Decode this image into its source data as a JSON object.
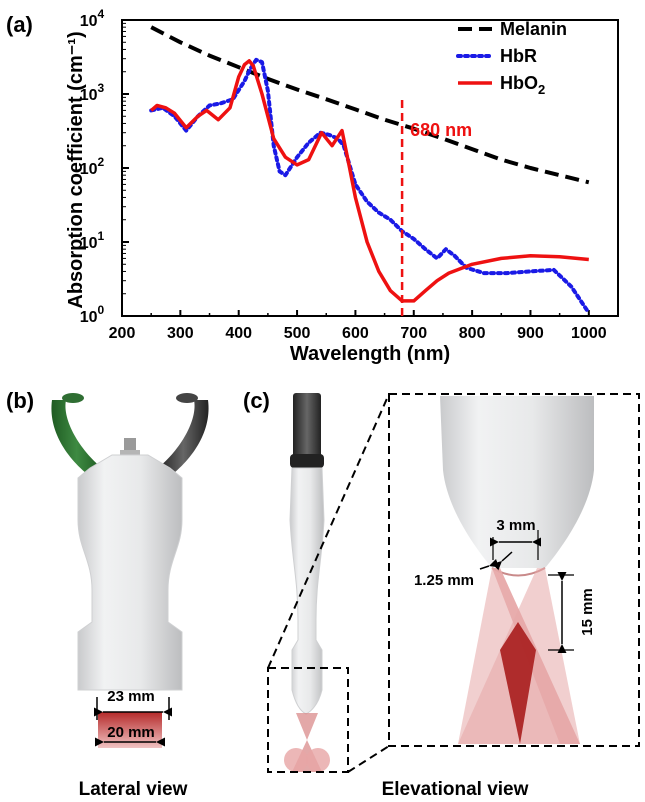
{
  "panels": {
    "a": "(a)",
    "b": "(b)",
    "c": "(c)"
  },
  "chart_data": {
    "type": "line",
    "xlabel": "Wavelength (nm)",
    "ylabel": "Absorption coefficient (cm⁻¹)",
    "xlim": [
      200,
      1050
    ],
    "ylim": [
      1,
      10000
    ],
    "yscale": "log",
    "xticks": [
      200,
      300,
      400,
      500,
      600,
      700,
      800,
      900,
      1000
    ],
    "yticks": [
      {
        "value": 1,
        "base": "10",
        "exp": "0"
      },
      {
        "value": 10,
        "base": "10",
        "exp": "1"
      },
      {
        "value": 100,
        "base": "10",
        "exp": "2"
      },
      {
        "value": 1000,
        "base": "10",
        "exp": "3"
      },
      {
        "value": 10000,
        "base": "10",
        "exp": "4"
      }
    ],
    "legend_position": "top-right",
    "series": [
      {
        "name": "Melanin",
        "color": "#000000",
        "dash": "dashed",
        "x": [
          250,
          300,
          350,
          400,
          450,
          500,
          550,
          600,
          650,
          700,
          750,
          800,
          850,
          900,
          950,
          1000
        ],
        "y": [
          8000,
          5000,
          3300,
          2300,
          1600,
          1150,
          850,
          620,
          450,
          340,
          250,
          180,
          130,
          100,
          80,
          64
        ]
      },
      {
        "name": "HbR",
        "color": "#1a1ae6",
        "dash": "dotted",
        "x": [
          250,
          270,
          290,
          310,
          330,
          350,
          370,
          390,
          410,
          420,
          430,
          440,
          450,
          460,
          470,
          480,
          500,
          520,
          540,
          555,
          570,
          580,
          600,
          620,
          640,
          660,
          680,
          700,
          720,
          740,
          755,
          770,
          790,
          820,
          860,
          900,
          940,
          970,
          1000
        ],
        "y": [
          600,
          650,
          500,
          320,
          500,
          700,
          750,
          850,
          1500,
          2200,
          2900,
          2700,
          1100,
          200,
          90,
          80,
          140,
          220,
          300,
          280,
          250,
          200,
          60,
          35,
          25,
          20,
          14,
          11,
          8,
          6,
          8,
          6.5,
          4.5,
          3.8,
          3.8,
          4,
          4.2,
          2.5,
          1.1
        ]
      },
      {
        "name": "HbO₂",
        "legend_main": "HbO",
        "legend_sub": "2",
        "color": "#ee1111",
        "dash": "solid",
        "x": [
          250,
          260,
          275,
          290,
          310,
          330,
          345,
          365,
          385,
          400,
          410,
          418,
          425,
          440,
          460,
          480,
          500,
          520,
          542,
          560,
          577,
          590,
          600,
          620,
          640,
          660,
          680,
          700,
          720,
          740,
          760,
          800,
          850,
          900,
          950,
          1000
        ],
        "y": [
          600,
          700,
          650,
          550,
          350,
          500,
          600,
          450,
          650,
          1700,
          2500,
          2800,
          2400,
          1000,
          250,
          140,
          110,
          130,
          300,
          200,
          320,
          100,
          40,
          10,
          4,
          2.2,
          1.6,
          1.6,
          2.2,
          3,
          3.8,
          5,
          6,
          6.5,
          6.3,
          5.8
        ]
      }
    ],
    "annotations": [
      {
        "text": "680 nm",
        "x": 680,
        "color": "#ee1111",
        "style": "vertical dashed line"
      }
    ]
  },
  "diagram_b": {
    "width_label": "23 mm",
    "beam_label": "20 mm",
    "caption": "Lateral view"
  },
  "diagram_c": {
    "caption": "Elevational view",
    "gap_label": "3 mm",
    "wall_label": "1.25 mm",
    "depth_label": "15 mm"
  }
}
